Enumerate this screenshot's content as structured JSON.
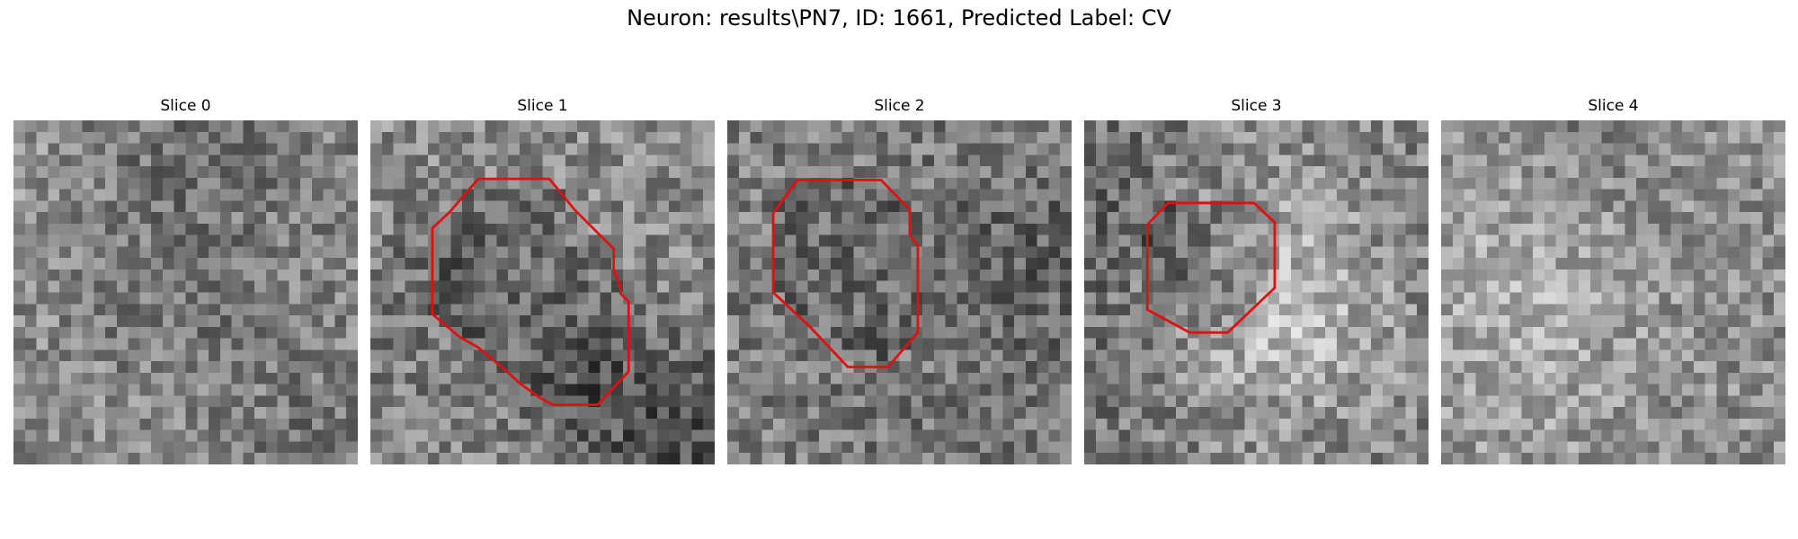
{
  "figure": {
    "title": "Neuron: results\\PN7, ID: 1661, Predicted Label: CV",
    "contour_color": "#e01010"
  },
  "slices": [
    {
      "label": "Slice 0",
      "mean": 132,
      "spread": 42,
      "has_contour": false
    },
    {
      "label": "Slice 1",
      "mean": 138,
      "spread": 44,
      "has_contour": true,
      "contour": [
        [
          9.4,
          5.1
        ],
        [
          15.6,
          5.1
        ],
        [
          17.8,
          7.8
        ],
        [
          21.2,
          11.2
        ],
        [
          21.2,
          13.0
        ],
        [
          21.8,
          14.6
        ],
        [
          21.8,
          15.1
        ],
        [
          22.5,
          15.8
        ],
        [
          22.5,
          21.9
        ],
        [
          19.8,
          24.8
        ],
        [
          15.9,
          24.8
        ],
        [
          14.8,
          24.2
        ],
        [
          14.1,
          23.7
        ],
        [
          13.1,
          23.0
        ],
        [
          11.9,
          21.9
        ],
        [
          9.4,
          19.8
        ],
        [
          7.8,
          18.9
        ],
        [
          5.4,
          16.9
        ],
        [
          5.4,
          9.4
        ],
        [
          6.9,
          8.0
        ]
      ]
    },
    {
      "label": "Slice 2",
      "mean": 126,
      "spread": 44,
      "has_contour": true,
      "contour": [
        [
          8.1,
          5.2
        ],
        [
          13.4,
          5.2
        ],
        [
          15.9,
          7.8
        ],
        [
          15.9,
          10.0
        ],
        [
          16.6,
          10.9
        ],
        [
          16.6,
          18.5
        ],
        [
          14.0,
          21.5
        ],
        [
          10.5,
          21.5
        ],
        [
          7.2,
          18.0
        ],
        [
          4.0,
          15.0
        ],
        [
          4.0,
          8.1
        ],
        [
          6.1,
          5.2
        ]
      ]
    },
    {
      "label": "Slice 3",
      "mean": 130,
      "spread": 46,
      "has_contour": true,
      "contour": [
        [
          10.0,
          7.2
        ],
        [
          14.8,
          7.2
        ],
        [
          16.6,
          8.9
        ],
        [
          16.6,
          14.6
        ],
        [
          12.5,
          18.5
        ],
        [
          9.2,
          18.5
        ],
        [
          5.5,
          16.5
        ],
        [
          5.5,
          9.1
        ],
        [
          7.3,
          7.2
        ]
      ]
    },
    {
      "label": "Slice 4",
      "mean": 140,
      "spread": 42,
      "has_contour": false
    }
  ]
}
